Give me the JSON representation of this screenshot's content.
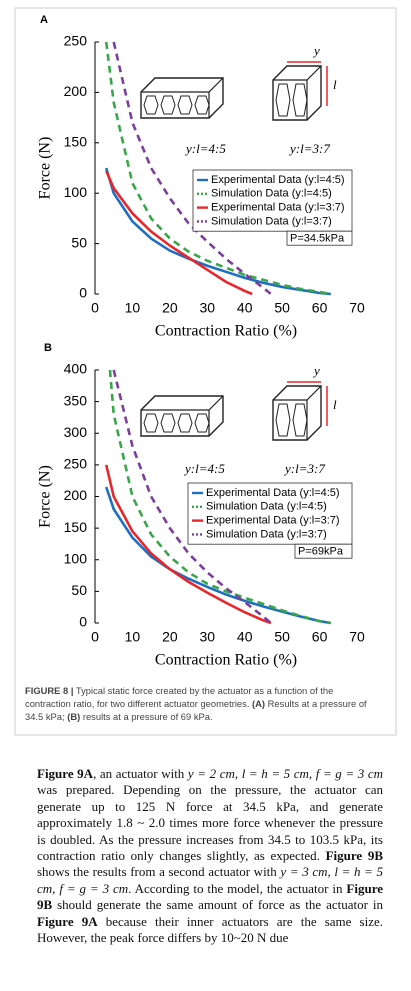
{
  "chart_data": [
    {
      "type": "line",
      "panel_label": "A",
      "xlabel": "Contraction Ratio (%)",
      "ylabel": "Force (N)",
      "xlim": [
        0,
        70
      ],
      "ylim": [
        0,
        250
      ],
      "xticks": [
        0,
        10,
        20,
        30,
        40,
        50,
        60,
        70
      ],
      "yticks": [
        0,
        50,
        100,
        150,
        200,
        250
      ],
      "legend": "center right",
      "note": "P=34.5kPa",
      "annotations": [
        "y:l=4:5",
        "y:l=3:7",
        "y",
        "l"
      ],
      "series": [
        {
          "name": "Experimental Data (y:l=4:5)",
          "color": "#1f6fc0",
          "dashed": false,
          "x": [
            3,
            5,
            10,
            15,
            20,
            25,
            30,
            35,
            40,
            45,
            50,
            55,
            60,
            63
          ],
          "values": [
            125,
            100,
            72,
            55,
            43,
            35,
            28,
            22,
            16,
            11,
            7,
            4,
            1,
            0
          ]
        },
        {
          "name": "Simulation Data (y:l=4:5)",
          "color": "#3aa64a",
          "dashed": true,
          "x": [
            3,
            5,
            10,
            15,
            20,
            25,
            30,
            35,
            40,
            45,
            50,
            55,
            60,
            63
          ],
          "values": [
            250,
            190,
            110,
            75,
            55,
            42,
            33,
            26,
            19,
            14,
            9,
            5,
            2,
            0
          ]
        },
        {
          "name": "Experimental Data (y:l=3:7)",
          "color": "#e8262b",
          "dashed": false,
          "x": [
            3,
            5,
            10,
            15,
            20,
            25,
            30,
            35,
            40,
            42
          ],
          "values": [
            122,
            105,
            80,
            62,
            48,
            36,
            24,
            12,
            3,
            0
          ]
        },
        {
          "name": "Simulation Data (y:l=3:7)",
          "color": "#7b3f9e",
          "dashed": true,
          "x": [
            5,
            10,
            15,
            20,
            25,
            30,
            35,
            40,
            45,
            47
          ],
          "values": [
            250,
            170,
            125,
            95,
            70,
            52,
            35,
            20,
            6,
            0
          ]
        }
      ]
    },
    {
      "type": "line",
      "panel_label": "B",
      "xlabel": "Contraction Ratio (%)",
      "ylabel": "Force (N)",
      "xlim": [
        0,
        70
      ],
      "ylim": [
        0,
        400
      ],
      "xticks": [
        0,
        10,
        20,
        30,
        40,
        50,
        60,
        70
      ],
      "yticks": [
        0,
        50,
        100,
        150,
        200,
        250,
        300,
        350,
        400
      ],
      "legend": "center right",
      "note": "P=69kPa",
      "annotations": [
        "y:l=4:5",
        "y:l=3:7",
        "y",
        "l"
      ],
      "series": [
        {
          "name": "Experimental Data (y:l=4:5)",
          "color": "#1f6fc0",
          "dashed": false,
          "x": [
            3,
            5,
            10,
            15,
            20,
            25,
            30,
            35,
            40,
            45,
            50,
            55,
            60,
            63
          ],
          "values": [
            215,
            180,
            135,
            105,
            85,
            70,
            57,
            45,
            35,
            26,
            18,
            10,
            3,
            0
          ]
        },
        {
          "name": "Simulation Data (y:l=4:5)",
          "color": "#3aa64a",
          "dashed": true,
          "x": [
            4,
            5,
            10,
            15,
            20,
            25,
            30,
            35,
            40,
            45,
            50,
            55,
            60,
            63
          ],
          "values": [
            400,
            330,
            200,
            140,
            105,
            80,
            62,
            50,
            40,
            30,
            20,
            11,
            3,
            0
          ]
        },
        {
          "name": "Experimental Data (y:l=3:7)",
          "color": "#e8262b",
          "dashed": false,
          "x": [
            3,
            5,
            10,
            15,
            20,
            25,
            30,
            35,
            40,
            45,
            47
          ],
          "values": [
            250,
            200,
            145,
            110,
            85,
            65,
            48,
            32,
            17,
            4,
            0
          ]
        },
        {
          "name": "Simulation Data (y:l=3:7)",
          "color": "#7b3f9e",
          "dashed": true,
          "x": [
            5,
            10,
            15,
            20,
            25,
            30,
            35,
            40,
            45,
            47
          ],
          "values": [
            400,
            280,
            200,
            150,
            110,
            80,
            55,
            33,
            10,
            0
          ]
        }
      ]
    }
  ],
  "caption": [
    "FIGURE 8 |",
    " Typical static force created by the actuator as a function of the contraction ratio, for two different actuator geometries. ",
    "(A)",
    " Results at a pressure of 34.5 kPa; ",
    "(B)",
    " results at a pressure of 69 kPa."
  ],
  "body": [
    "Figure 9A",
    ", an actuator with ",
    "y = 2 cm, l = h = 5 cm, f = g = 3 cm",
    " was prepared. Depending on the pressure, the actuator can generate up to 125 N force at 34.5 kPa, and generate approximately 1.8 ~ 2.0 times more force whenever the pressure is doubled. As the pressure increases from 34.5 to 103.5 kPa, its contraction ratio only changes slightly, as expected. ",
    "Figure 9B",
    " shows the results from a second actuator with ",
    "y = 3 cm, l = h = 5 cm, f = g = 3 cm",
    ". According to the model, the actuator in ",
    "Figure 9B",
    " should generate the same amount of force as the actuator in ",
    "Figure 9A",
    " because their inner actuators are the same size. However, the peak force differs by 10~20 N due"
  ]
}
